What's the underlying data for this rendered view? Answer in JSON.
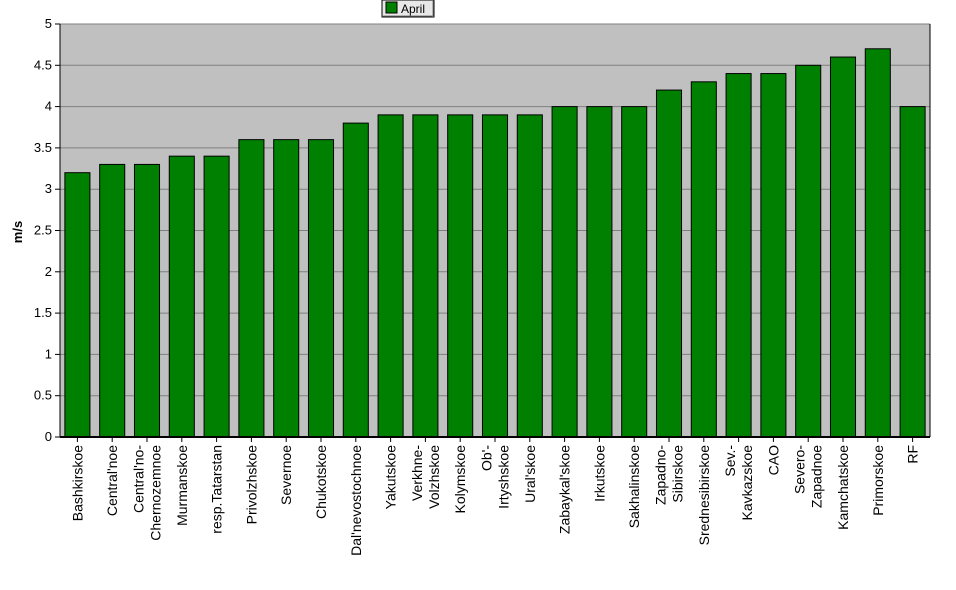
{
  "chart_data": {
    "type": "bar",
    "ylabel": "m/s",
    "ylim": [
      0,
      5
    ],
    "yticks": [
      "0",
      "0.5",
      "1",
      "1.5",
      "2",
      "2.5",
      "3",
      "3.5",
      "4",
      "4.5",
      "5"
    ],
    "grid": true,
    "legend_position": "top-center",
    "categories": [
      [
        "Bashkirskoe"
      ],
      [
        "Central'noe"
      ],
      [
        "Central'no-",
        "Chernozemnoe"
      ],
      [
        "Murmanskoe"
      ],
      [
        "resp.Tatarstan"
      ],
      [
        "Privolzhskoe"
      ],
      [
        "Severnoe"
      ],
      [
        "Chukotskoe"
      ],
      [
        "Dal'nevostochnoe"
      ],
      [
        "Yakutskoe"
      ],
      [
        "Verkhne-",
        "Volzhskoe"
      ],
      [
        "Kolymskoe"
      ],
      [
        "Ob'-",
        "Irtyshskoe"
      ],
      [
        "Ural'skoe"
      ],
      [
        "Zabaykal'skoe"
      ],
      [
        "Irkutskoe"
      ],
      [
        "Sakhalinskoe"
      ],
      [
        "Zapadno-",
        "Sibirskoe"
      ],
      [
        "Srednesibirskoe"
      ],
      [
        "Sev.-",
        "Kavkazskoe"
      ],
      [
        "CAO"
      ],
      [
        "Severo-",
        "Zapadnoe"
      ],
      [
        "Kamchatskoe"
      ],
      [
        "Primorskoe"
      ],
      [
        "RF"
      ]
    ],
    "series": [
      {
        "name": "April",
        "color": "#008000",
        "values": [
          3.2,
          3.3,
          3.3,
          3.4,
          3.4,
          3.6,
          3.6,
          3.6,
          3.8,
          3.9,
          3.9,
          3.9,
          3.9,
          3.9,
          4.0,
          4.0,
          4.0,
          4.2,
          4.3,
          4.4,
          4.4,
          4.5,
          4.6,
          4.7,
          4.0
        ]
      }
    ],
    "plot_background": "#c0c0c0"
  }
}
